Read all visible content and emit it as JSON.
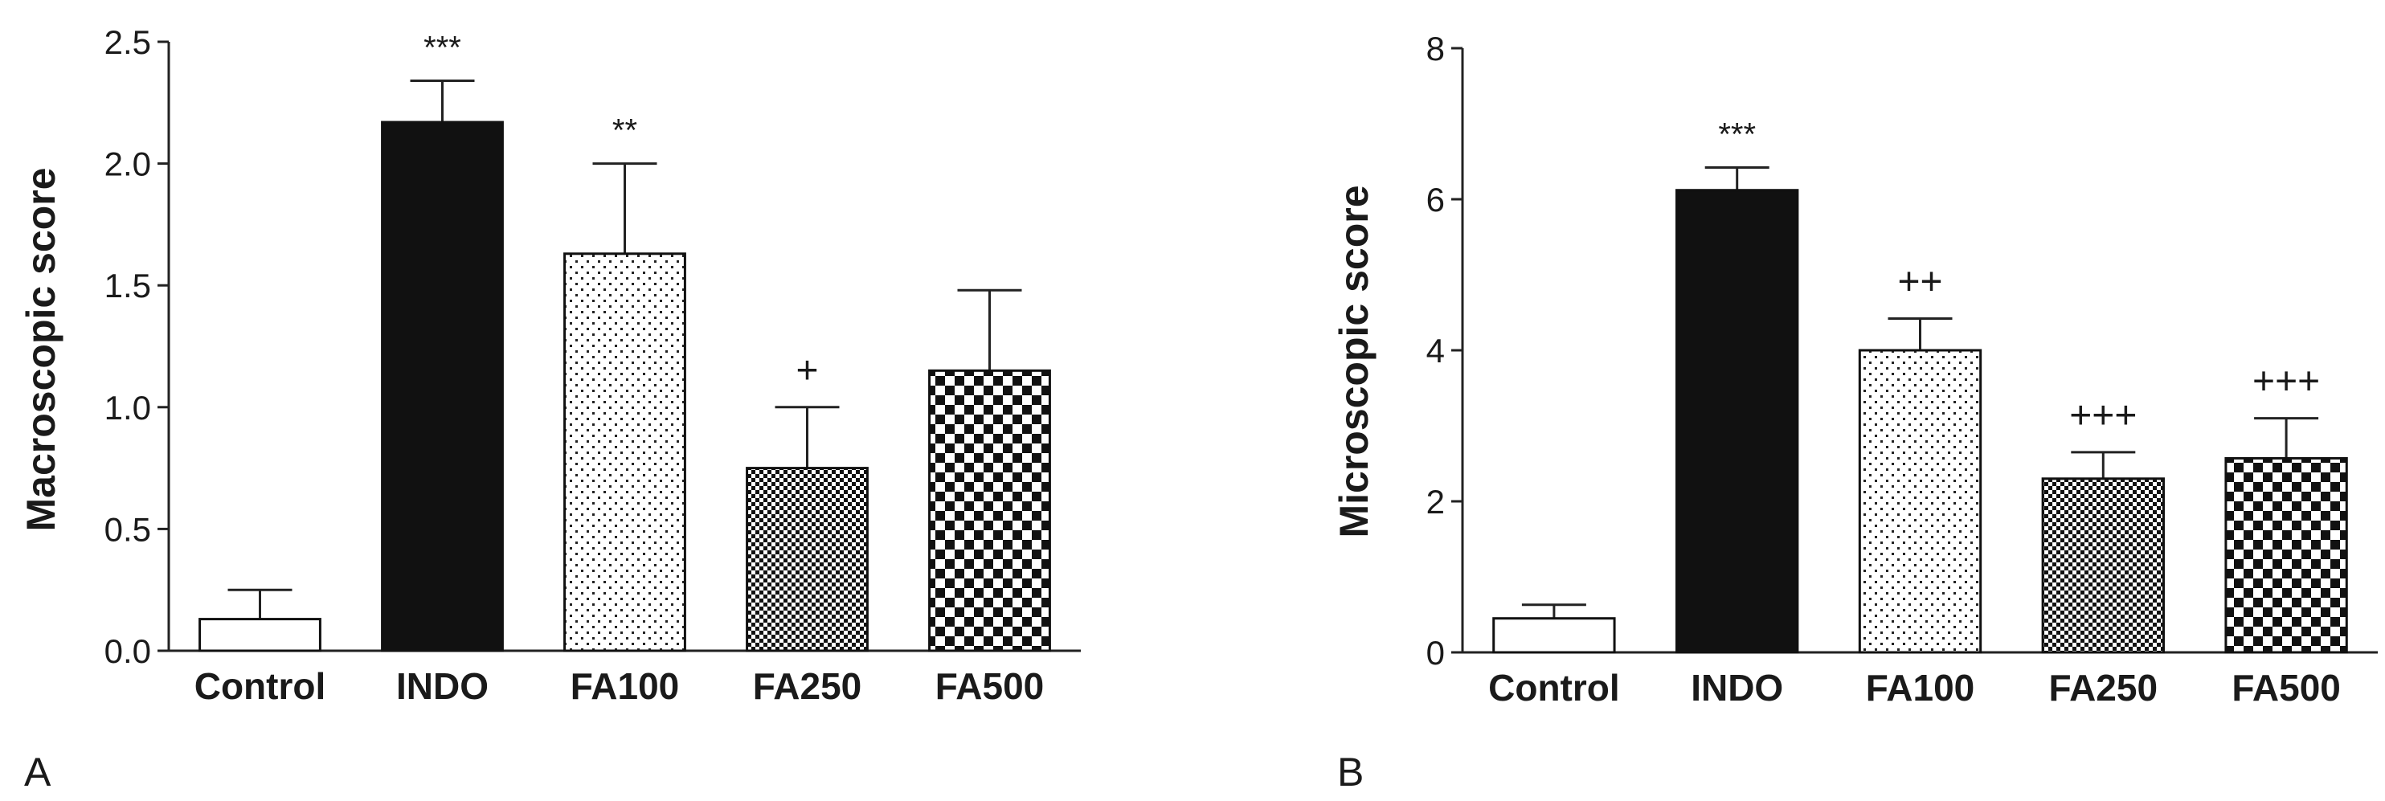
{
  "chart_data": [
    {
      "type": "bar",
      "panel_label": "A",
      "ylabel": "Macroscopic score",
      "xlabel": "",
      "ylim": [
        0,
        2.5
      ],
      "yticks": [
        "0.0",
        "0.5",
        "1.0",
        "1.5",
        "2.0",
        "2.5"
      ],
      "categories": [
        "Control",
        "INDO",
        "FA100",
        "FA250",
        "FA500"
      ],
      "values": [
        0.13,
        2.17,
        1.63,
        0.75,
        1.15
      ],
      "errors": [
        0.12,
        0.17,
        0.37,
        0.25,
        0.33
      ],
      "annotations": [
        "",
        "***",
        "**",
        "+",
        ""
      ],
      "fills": [
        "white",
        "black",
        "sparse-dots",
        "fine-checker",
        "checker"
      ]
    },
    {
      "type": "bar",
      "panel_label": "B",
      "ylabel": "Microscopic score",
      "xlabel": "",
      "ylim": [
        0,
        8
      ],
      "yticks": [
        "0",
        "2",
        "4",
        "6",
        "8"
      ],
      "categories": [
        "Control",
        "INDO",
        "FA100",
        "FA250",
        "FA500"
      ],
      "values": [
        0.45,
        6.12,
        4.0,
        2.3,
        2.57
      ],
      "errors": [
        0.18,
        0.3,
        0.42,
        0.35,
        0.53
      ],
      "annotations": [
        "",
        "***",
        "++",
        "+++",
        "+++"
      ],
      "fills": [
        "white",
        "black",
        "sparse-dots",
        "fine-checker",
        "checker"
      ]
    }
  ]
}
